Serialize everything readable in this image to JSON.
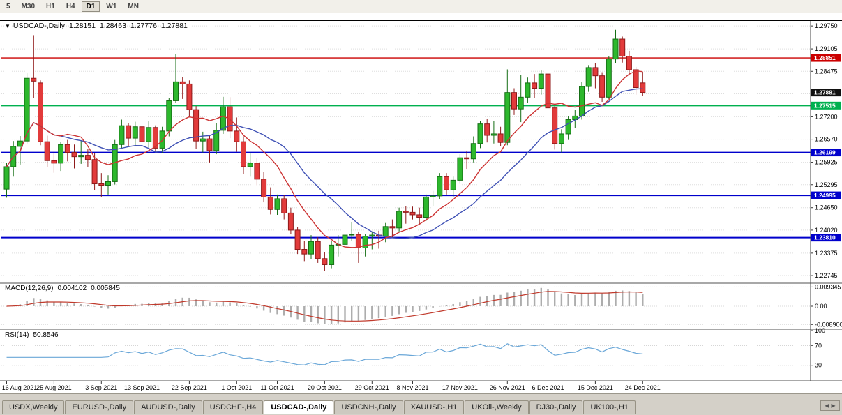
{
  "toolbar": {
    "timeframes": [
      {
        "label": "5"
      },
      {
        "label": "M30"
      },
      {
        "label": "H1"
      },
      {
        "label": "H4"
      },
      {
        "label": "D1",
        "active": true
      },
      {
        "label": "W1"
      },
      {
        "label": "MN"
      }
    ]
  },
  "chart": {
    "title": "USDCAD-,Daily",
    "ohlc": {
      "open": "1.28151",
      "high": "1.28463",
      "low": "1.27776",
      "close": "1.27881"
    }
  },
  "chart_data": {
    "type": "candlestick",
    "symbol": "USDCAD-,Daily",
    "last_ohlc": {
      "open": 1.28151,
      "high": 1.28463,
      "low": 1.27776,
      "close": 1.27881
    },
    "price_range": [
      1.2257,
      1.2987
    ],
    "price_ticks": [
      "1.29750",
      "1.29105",
      "1.28475",
      "1.27845",
      "1.27200",
      "1.26570",
      "1.25925",
      "1.25295",
      "1.24650",
      "1.24020",
      "1.23375",
      "1.22745"
    ],
    "x_labels": [
      {
        "text": "16 Aug 2021",
        "i": 0
      },
      {
        "text": "25 Aug 2021",
        "i": 7
      },
      {
        "text": "3 Sep 2021",
        "i": 14
      },
      {
        "text": "13 Sep 2021",
        "i": 20
      },
      {
        "text": "22 Sep 2021",
        "i": 27
      },
      {
        "text": "1 Oct 2021",
        "i": 34
      },
      {
        "text": "11 Oct 2021",
        "i": 40
      },
      {
        "text": "20 Oct 2021",
        "i": 47
      },
      {
        "text": "29 Oct 2021",
        "i": 54
      },
      {
        "text": "8 Nov 2021",
        "i": 60
      },
      {
        "text": "17 Nov 2021",
        "i": 67
      },
      {
        "text": "26 Nov 2021",
        "i": 74
      },
      {
        "text": "6 Dec 2021",
        "i": 80
      },
      {
        "text": "15 Dec 2021",
        "i": 87
      },
      {
        "text": "24 Dec 2021",
        "i": 94
      }
    ],
    "bull_color": "#2db82d",
    "bull_border": "#156e15",
    "bear_color": "#e23b3b",
    "bear_border": "#8f1a1a",
    "candles": [
      [
        1.2517,
        1.2591,
        1.2493,
        1.258
      ],
      [
        1.258,
        1.2652,
        1.2552,
        1.2637
      ],
      [
        1.2637,
        1.2666,
        1.2586,
        1.2652
      ],
      [
        1.2652,
        1.2842,
        1.2645,
        1.2828
      ],
      [
        1.2828,
        1.2949,
        1.2773,
        1.282
      ],
      [
        1.2815,
        1.2822,
        1.264,
        1.265
      ],
      [
        1.265,
        1.2667,
        1.258,
        1.2597
      ],
      [
        1.2597,
        1.2622,
        1.2563,
        1.259
      ],
      [
        1.259,
        1.265,
        1.2568,
        1.2642
      ],
      [
        1.2642,
        1.2655,
        1.2595,
        1.262
      ],
      [
        1.262,
        1.2642,
        1.2575,
        1.2608
      ],
      [
        1.2608,
        1.2652,
        1.2588,
        1.2612
      ],
      [
        1.2612,
        1.263,
        1.258,
        1.26
      ],
      [
        1.26,
        1.2618,
        1.2515,
        1.2532
      ],
      [
        1.2532,
        1.2562,
        1.2495,
        1.2528
      ],
      [
        1.2528,
        1.2556,
        1.2502,
        1.2538
      ],
      [
        1.2538,
        1.2655,
        1.253,
        1.2642
      ],
      [
        1.2642,
        1.2712,
        1.263,
        1.2695
      ],
      [
        1.2695,
        1.2702,
        1.2635,
        1.266
      ],
      [
        1.266,
        1.2706,
        1.264,
        1.2692
      ],
      [
        1.2692,
        1.27,
        1.2632,
        1.265
      ],
      [
        1.265,
        1.2707,
        1.2634,
        1.269
      ],
      [
        1.269,
        1.2696,
        1.262,
        1.2632
      ],
      [
        1.2632,
        1.2692,
        1.2618,
        1.268
      ],
      [
        1.268,
        1.2772,
        1.2665,
        1.2765
      ],
      [
        1.2765,
        1.2896,
        1.2758,
        1.2818
      ],
      [
        1.2818,
        1.2832,
        1.277,
        1.2812
      ],
      [
        1.2812,
        1.2822,
        1.2718,
        1.274
      ],
      [
        1.274,
        1.275,
        1.263,
        1.2652
      ],
      [
        1.2652,
        1.2678,
        1.262,
        1.2658
      ],
      [
        1.2658,
        1.267,
        1.2592,
        1.2625
      ],
      [
        1.2625,
        1.2702,
        1.2615,
        1.2682
      ],
      [
        1.2682,
        1.2776,
        1.2672,
        1.2748
      ],
      [
        1.2748,
        1.2775,
        1.266,
        1.268
      ],
      [
        1.268,
        1.2718,
        1.2622,
        1.265
      ],
      [
        1.265,
        1.2665,
        1.256,
        1.258
      ],
      [
        1.258,
        1.262,
        1.2552,
        1.259
      ],
      [
        1.259,
        1.2605,
        1.2528,
        1.2545
      ],
      [
        1.2545,
        1.2565,
        1.248,
        1.2495
      ],
      [
        1.2495,
        1.2522,
        1.2446,
        1.246
      ],
      [
        1.246,
        1.2502,
        1.2445,
        1.249
      ],
      [
        1.249,
        1.25,
        1.2432,
        1.245
      ],
      [
        1.245,
        1.2465,
        1.239,
        1.2402
      ],
      [
        1.2402,
        1.241,
        1.2335,
        1.2348
      ],
      [
        1.2348,
        1.2372,
        1.2315,
        1.2335
      ],
      [
        1.2335,
        1.2388,
        1.232,
        1.237
      ],
      [
        1.237,
        1.2382,
        1.231,
        1.2322
      ],
      [
        1.2322,
        1.234,
        1.2288,
        1.2305
      ],
      [
        1.2305,
        1.2372,
        1.2295,
        1.236
      ],
      [
        1.236,
        1.2388,
        1.2328,
        1.2362
      ],
      [
        1.2362,
        1.2395,
        1.2342,
        1.2388
      ],
      [
        1.2388,
        1.2425,
        1.2372,
        1.239
      ],
      [
        1.239,
        1.2398,
        1.231,
        1.2352
      ],
      [
        1.2352,
        1.239,
        1.2328,
        1.2385
      ],
      [
        1.2385,
        1.2398,
        1.2348,
        1.2388
      ],
      [
        1.2388,
        1.24,
        1.235,
        1.2385
      ],
      [
        1.2385,
        1.2422,
        1.2368,
        1.2412
      ],
      [
        1.2412,
        1.2432,
        1.238,
        1.2408
      ],
      [
        1.2408,
        1.2465,
        1.2398,
        1.2455
      ],
      [
        1.2455,
        1.247,
        1.242,
        1.2452
      ],
      [
        1.2452,
        1.2468,
        1.2432,
        1.2445
      ],
      [
        1.2445,
        1.2465,
        1.2418,
        1.2438
      ],
      [
        1.2438,
        1.2502,
        1.2428,
        1.2495
      ],
      [
        1.2495,
        1.2512,
        1.247,
        1.2498
      ],
      [
        1.2498,
        1.2562,
        1.2488,
        1.2552
      ],
      [
        1.2552,
        1.2562,
        1.2502,
        1.2515
      ],
      [
        1.2515,
        1.2552,
        1.2495,
        1.2542
      ],
      [
        1.2542,
        1.2615,
        1.2532,
        1.2605
      ],
      [
        1.2605,
        1.2625,
        1.2572,
        1.2602
      ],
      [
        1.2602,
        1.2665,
        1.2592,
        1.2645
      ],
      [
        1.2645,
        1.2708,
        1.2632,
        1.27
      ],
      [
        1.27,
        1.2715,
        1.2648,
        1.2668
      ],
      [
        1.2668,
        1.2708,
        1.2645,
        1.2672
      ],
      [
        1.2672,
        1.2692,
        1.2638,
        1.2648
      ],
      [
        1.2648,
        1.2853,
        1.264,
        1.2788
      ],
      [
        1.2788,
        1.28,
        1.2725,
        1.2742
      ],
      [
        1.2742,
        1.2837,
        1.2705,
        1.2775
      ],
      [
        1.2775,
        1.283,
        1.2758,
        1.2815
      ],
      [
        1.2815,
        1.284,
        1.2772,
        1.28
      ],
      [
        1.28,
        1.2852,
        1.2782,
        1.284
      ],
      [
        1.284,
        1.2846,
        1.2718,
        1.2745
      ],
      [
        1.2745,
        1.275,
        1.2628,
        1.2645
      ],
      [
        1.2645,
        1.2685,
        1.262,
        1.2672
      ],
      [
        1.2672,
        1.2722,
        1.2655,
        1.2712
      ],
      [
        1.2712,
        1.274,
        1.2688,
        1.2722
      ],
      [
        1.2722,
        1.2818,
        1.2712,
        1.2805
      ],
      [
        1.2805,
        1.2865,
        1.279,
        1.2858
      ],
      [
        1.2858,
        1.287,
        1.28,
        1.2835
      ],
      [
        1.2835,
        1.2845,
        1.2762,
        1.2775
      ],
      [
        1.2775,
        1.289,
        1.277,
        1.2882
      ],
      [
        1.2882,
        1.2964,
        1.287,
        1.2938
      ],
      [
        1.2938,
        1.2945,
        1.2872,
        1.289
      ],
      [
        1.289,
        1.2905,
        1.2838,
        1.2852
      ],
      [
        1.2852,
        1.286,
        1.2782,
        1.2802
      ],
      [
        1.28151,
        1.28463,
        1.27776,
        1.27881
      ]
    ],
    "hlines": [
      {
        "value": 1.28851,
        "label": "1.28851",
        "color": "#cc0000",
        "width": 1.4
      },
      {
        "value": 1.27515,
        "label": "1.27515",
        "color": "#00b04f",
        "width": 2
      },
      {
        "value": 1.26199,
        "label": "1.26199",
        "color": "#0000cc",
        "width": 2
      },
      {
        "value": 1.24995,
        "label": "1.24995",
        "color": "#0000cc",
        "width": 2
      },
      {
        "value": 1.2381,
        "label": "1.23810",
        "color": "#0000cc",
        "width": 2
      }
    ],
    "current_price": {
      "value": 1.27881,
      "label": "1.27881",
      "badge_color": "#111111"
    },
    "moving_averages": [
      {
        "period": 9,
        "color": "#cc3333"
      },
      {
        "period": 18,
        "color": "#3f51b5"
      }
    ],
    "indicators": {
      "macd": {
        "label": "MACD(12,26,9)",
        "value_main": "0.004102",
        "value_signal": "0.005845",
        "fast": 12,
        "slow": 26,
        "signal": 9,
        "range": [
          -0.0105,
          0.0105
        ],
        "ticks": [
          {
            "value": 0.009345,
            "label": "0.009345"
          },
          {
            "value": 0,
            "label": "0.00"
          },
          {
            "value": -0.0089,
            "label": "-0.008900"
          }
        ],
        "histogram_color": "#adadad",
        "signal_color": "#c0392b"
      },
      "rsi": {
        "label": "RSI(14)",
        "value": "50.8546",
        "period": 14,
        "range": [
          0,
          100
        ],
        "ticks": [
          {
            "value": 100,
            "label": "100"
          },
          {
            "value": 70,
            "label": "70"
          },
          {
            "value": 30,
            "label": "30"
          }
        ],
        "levels": [
          70,
          30
        ],
        "color": "#6aa7d8"
      }
    }
  },
  "tabs": [
    {
      "label": "USDX,Weekly"
    },
    {
      "label": "EURUSD-,Daily"
    },
    {
      "label": "AUDUSD-,Daily"
    },
    {
      "label": "USDCHF-,H4"
    },
    {
      "label": "USDCAD-,Daily",
      "active": true
    },
    {
      "label": "USDCNH-,Daily"
    },
    {
      "label": "XAUUSD-,H1"
    },
    {
      "label": "UKOil-,Weekly"
    },
    {
      "label": "DJ30-,Daily"
    },
    {
      "label": "UK100-,H1"
    }
  ]
}
